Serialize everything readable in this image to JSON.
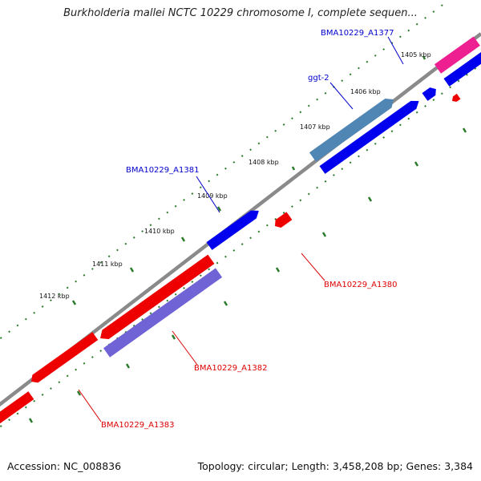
{
  "title": "Burkholderia mallei NCTC 10229 chromosome I, complete sequen...",
  "footer": {
    "accession": "Accession: NC_008836",
    "summary": "Topology: circular; Length: 3,458,208 bp; Genes: 3,384"
  },
  "colors": {
    "backbone": "#8a8a8a",
    "tick": "#2b7a2b",
    "label_forward": "#0000cc",
    "label_reverse": "#dd0000",
    "gene_blue": "#0000ee",
    "gene_red": "#ee0000",
    "gene_steel": "#4f86b4",
    "gene_purple": "#6f63d6",
    "gene_pink": "#ee1f90"
  },
  "ticks": [
    "1405 kbp",
    "1406 kbp",
    "1407 kbp",
    "1408 kbp",
    "1409 kbp",
    "1410 kbp",
    "1411 kbp",
    "1412 kbp"
  ],
  "gene_labels": {
    "a1377": "BMA10229_A1377",
    "ggt2": "ggt-2",
    "a1381": "BMA10229_A1381",
    "a1380": "BMA10229_A1380",
    "a1382": "BMA10229_A1382",
    "a1383": "BMA10229_A1383"
  }
}
